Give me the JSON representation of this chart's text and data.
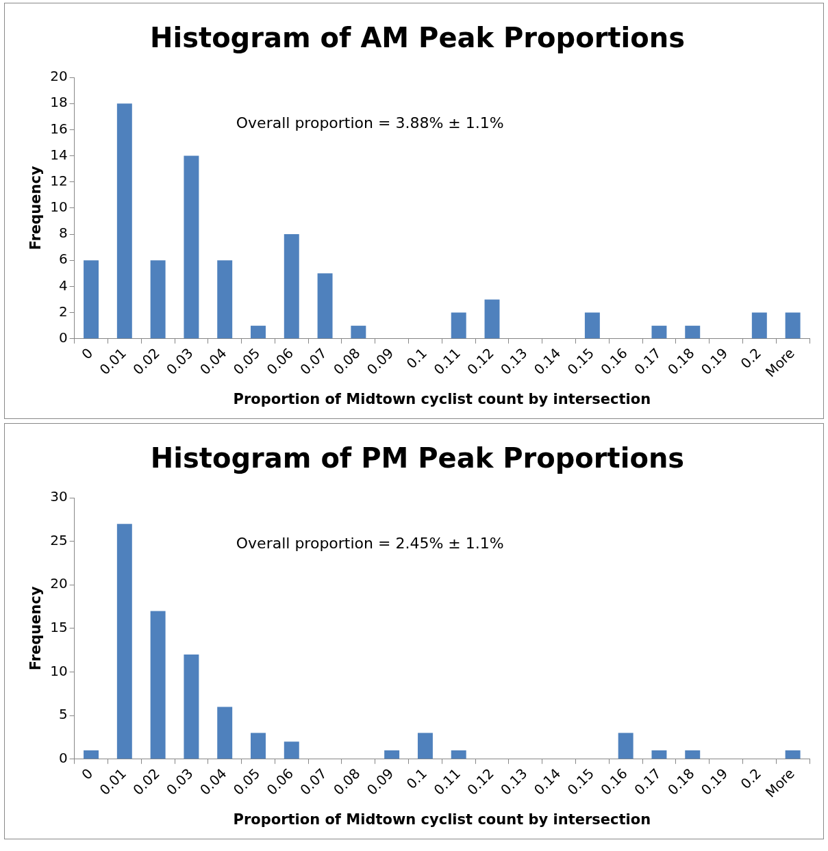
{
  "chart_data": [
    {
      "type": "bar",
      "title": "Histogram of AM Peak Proportions",
      "xlabel": "Proportion of Midtown cyclist count by intersection",
      "ylabel": "Frequency",
      "annotations": [
        "Overall proportion = 3.88% ± 1.1%"
      ],
      "categories": [
        "0",
        "0.01",
        "0.02",
        "0.03",
        "0.04",
        "0.05",
        "0.06",
        "0.07",
        "0.08",
        "0.09",
        "0.1",
        "0.11",
        "0.12",
        "0.13",
        "0.14",
        "0.15",
        "0.16",
        "0.17",
        "0.18",
        "0.19",
        "0.2",
        "More"
      ],
      "values": [
        6,
        18,
        6,
        14,
        6,
        1,
        8,
        5,
        1,
        0,
        0,
        2,
        3,
        0,
        0,
        2,
        0,
        1,
        1,
        0,
        2,
        2
      ],
      "color": "#4f81bd",
      "ylim": [
        0,
        20
      ],
      "yticks": [
        0,
        2,
        4,
        6,
        8,
        10,
        12,
        14,
        16,
        18,
        20
      ],
      "grid": false,
      "legend": false
    },
    {
      "type": "bar",
      "title": "Histogram of PM Peak Proportions",
      "xlabel": "Proportion of Midtown cyclist count by intersection",
      "ylabel": "Frequency",
      "annotations": [
        "Overall proportion = 2.45% ± 1.1%"
      ],
      "categories": [
        "0",
        "0.01",
        "0.02",
        "0.03",
        "0.04",
        "0.05",
        "0.06",
        "0.07",
        "0.08",
        "0.09",
        "0.1",
        "0.11",
        "0.12",
        "0.13",
        "0.14",
        "0.15",
        "0.16",
        "0.17",
        "0.18",
        "0.19",
        "0.2",
        "More"
      ],
      "values": [
        1,
        27,
        17,
        12,
        6,
        3,
        2,
        0,
        0,
        1,
        3,
        1,
        0,
        0,
        0,
        0,
        3,
        1,
        1,
        0,
        0,
        1
      ],
      "color": "#4f81bd",
      "ylim": [
        0,
        30
      ],
      "yticks": [
        0,
        5,
        10,
        15,
        20,
        25,
        30
      ],
      "grid": false,
      "legend": false
    }
  ]
}
